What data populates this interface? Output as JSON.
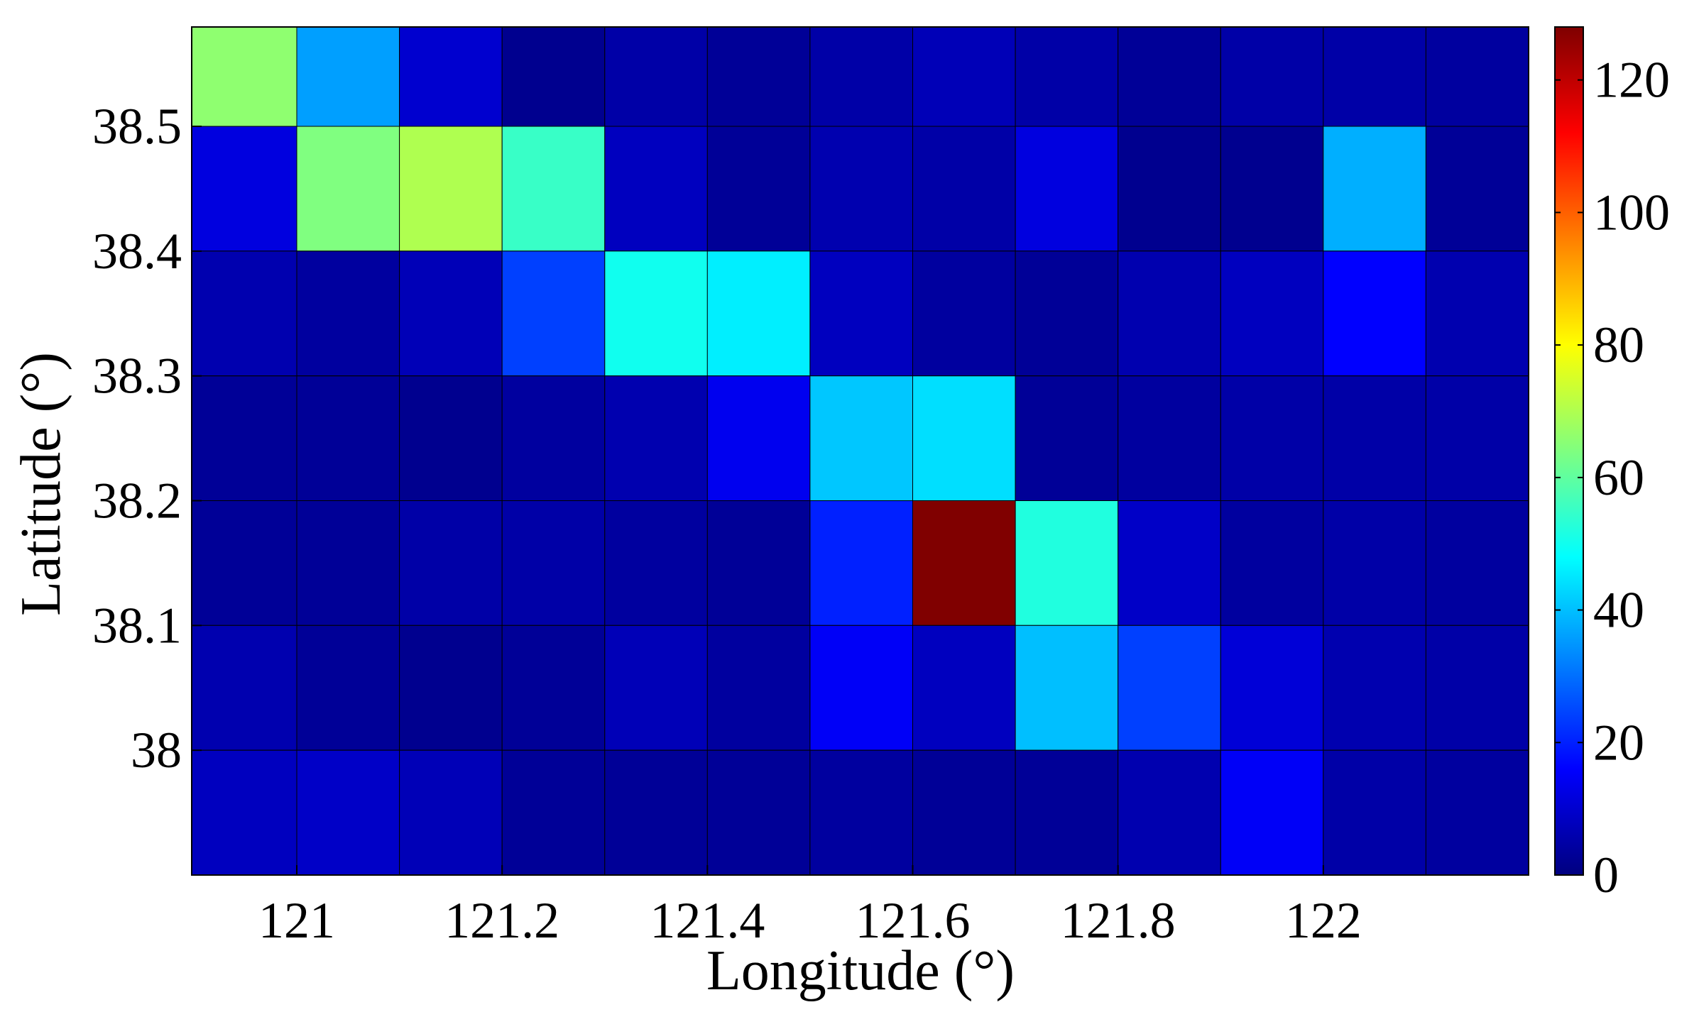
{
  "chart_data": {
    "type": "heatmap",
    "title": "",
    "xlabel": "Longitude (°)",
    "ylabel": "Latitude (°)",
    "x_ticks": [
      "121",
      "121.2",
      "121.4",
      "121.6",
      "121.8",
      "122"
    ],
    "y_ticks": [
      "38",
      "38.1",
      "38.2",
      "38.3",
      "38.4",
      "38.5"
    ],
    "colorbar": {
      "ticks": [
        "0",
        "20",
        "40",
        "60",
        "80",
        "100",
        "120"
      ],
      "range": [
        0,
        128
      ],
      "colormap": "jet"
    },
    "columns": 13,
    "rows_top_to_bottom": [
      [
        66,
        36,
        10,
        2,
        5,
        3,
        5,
        7,
        5,
        3,
        5,
        5,
        4
      ],
      [
        12,
        64,
        70,
        55,
        8,
        3,
        6,
        5,
        12,
        2,
        2,
        38,
        3
      ],
      [
        6,
        4,
        7,
        24,
        50,
        46,
        8,
        4,
        3,
        6,
        8,
        16,
        6
      ],
      [
        3,
        3,
        2,
        4,
        6,
        14,
        41,
        44,
        3,
        4,
        5,
        5,
        5
      ],
      [
        3,
        3,
        5,
        5,
        4,
        3,
        20,
        128,
        52,
        9,
        4,
        5,
        4
      ],
      [
        6,
        3,
        2,
        3,
        7,
        4,
        15,
        8,
        40,
        24,
        11,
        6,
        5
      ],
      [
        8,
        9,
        7,
        3,
        3,
        3,
        4,
        3,
        3,
        6,
        15,
        5,
        4
      ]
    ]
  }
}
